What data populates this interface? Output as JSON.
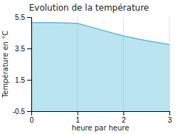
{
  "chart_data": {
    "type": "area",
    "title": "Evolution de la température",
    "x_label": "heure par heure",
    "y_label": "Température en °C",
    "x": [
      0,
      0.5,
      1.0,
      1.5,
      2.0,
      2.5,
      3.0
    ],
    "y": [
      5.15,
      5.15,
      5.1,
      4.7,
      4.3,
      4.0,
      3.75
    ],
    "color": "#55bbdd",
    "xlim": [
      0,
      3
    ],
    "ylim": [
      -0.5,
      5.5
    ],
    "xticks": [
      0,
      1,
      2,
      3
    ],
    "yticks": [
      -0.5,
      1.5,
      3.5,
      5.5
    ],
    "grid": "x"
  }
}
